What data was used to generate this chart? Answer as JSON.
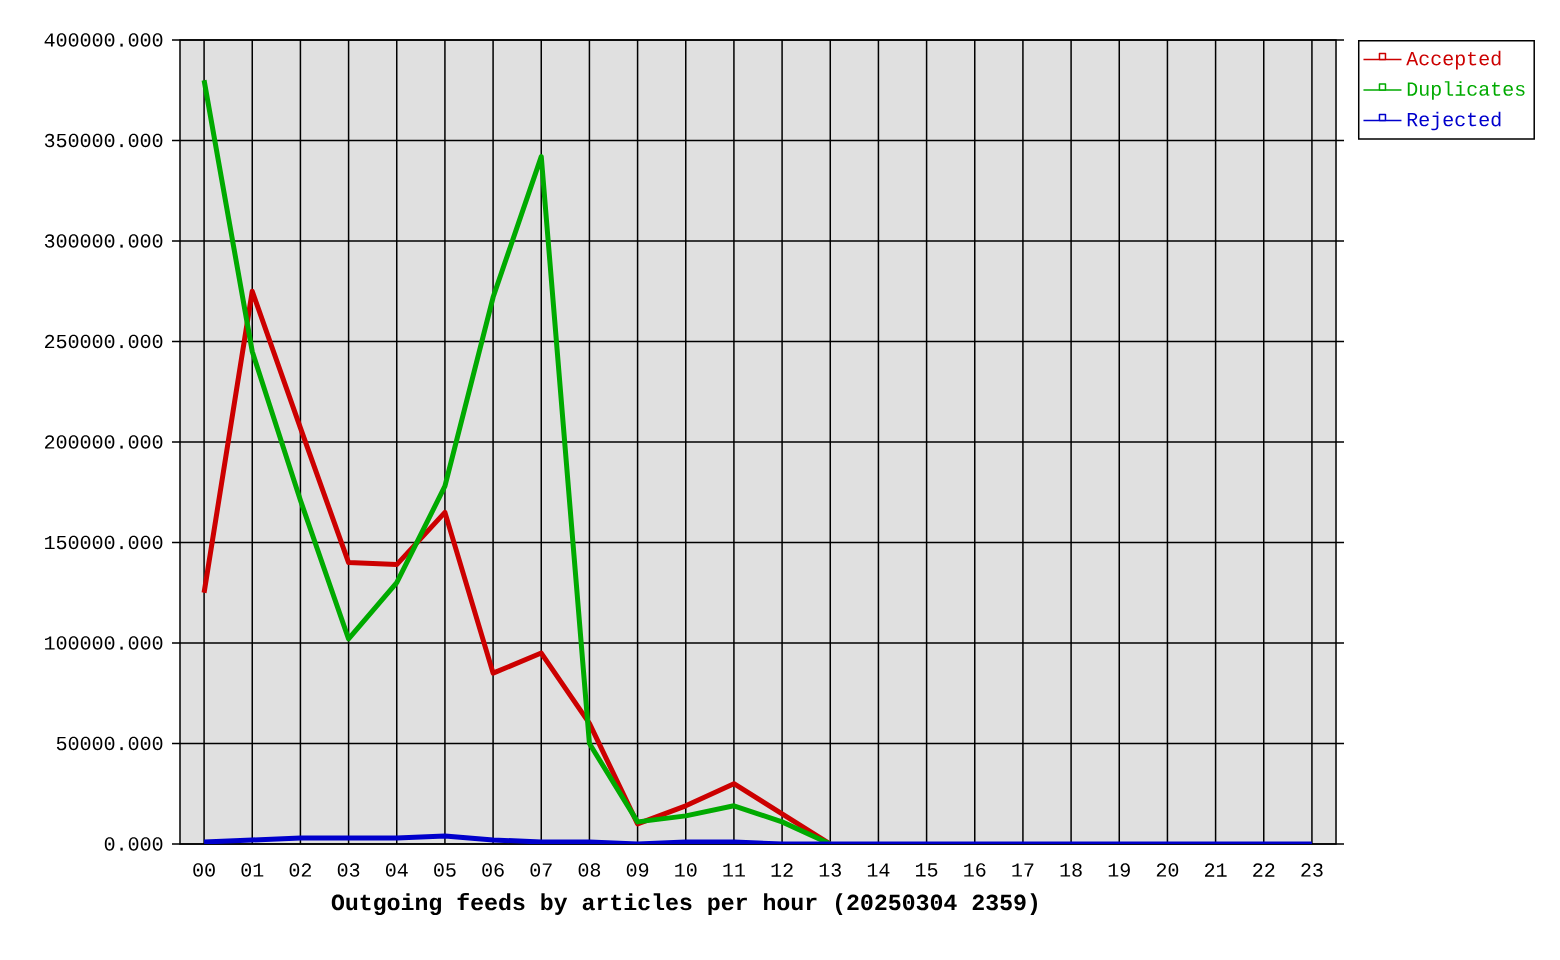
{
  "chart_data": {
    "type": "line",
    "xlabel": "**Outgoing feeds by articles per hour (20250304 2359)**",
    "categories": [
      "00",
      "01",
      "02",
      "03",
      "04",
      "05",
      "06",
      "07",
      "08",
      "09",
      "10",
      "11",
      "12",
      "13",
      "14",
      "15",
      "16",
      "17",
      "18",
      "19",
      "20",
      "21",
      "22",
      "23"
    ],
    "series": [
      {
        "name": "Accepted",
        "color": "#cc0000",
        "values": [
          125000,
          275000,
          207000,
          140000,
          139000,
          165000,
          85000,
          95000,
          60000,
          10000,
          19000,
          30000,
          15000,
          0,
          null,
          null,
          null,
          null,
          null,
          null,
          null,
          null,
          null,
          null
        ]
      },
      {
        "name": "Duplicates",
        "color": "#00aa00",
        "values": [
          380000,
          245000,
          171000,
          102000,
          130000,
          178000,
          272000,
          342000,
          50000,
          11000,
          14000,
          19000,
          11000,
          0,
          null,
          null,
          null,
          null,
          null,
          null,
          null,
          null,
          null,
          null
        ]
      },
      {
        "name": "Rejected",
        "color": "#0000cc",
        "values": [
          1000,
          2000,
          3000,
          3000,
          3000,
          4000,
          2000,
          1000,
          1000,
          0,
          1000,
          1000,
          0,
          0,
          0,
          0,
          0,
          0,
          0,
          0,
          0,
          0,
          0,
          0
        ]
      }
    ],
    "ylim": [
      0,
      400000
    ],
    "yticks": [
      {
        "value": 0,
        "label": "0.000"
      },
      {
        "value": 50000,
        "label": "50000.000"
      },
      {
        "value": 100000,
        "label": "100000.000"
      },
      {
        "value": 150000,
        "label": "150000.000"
      },
      {
        "value": 200000,
        "label": "200000.000"
      },
      {
        "value": 250000,
        "label": "250000.000"
      },
      {
        "value": 300000,
        "label": "300000.000"
      },
      {
        "value": 350000,
        "label": "350000.000"
      },
      {
        "value": 400000,
        "label": "400000.000"
      }
    ],
    "grid": true,
    "legend": "top right"
  }
}
